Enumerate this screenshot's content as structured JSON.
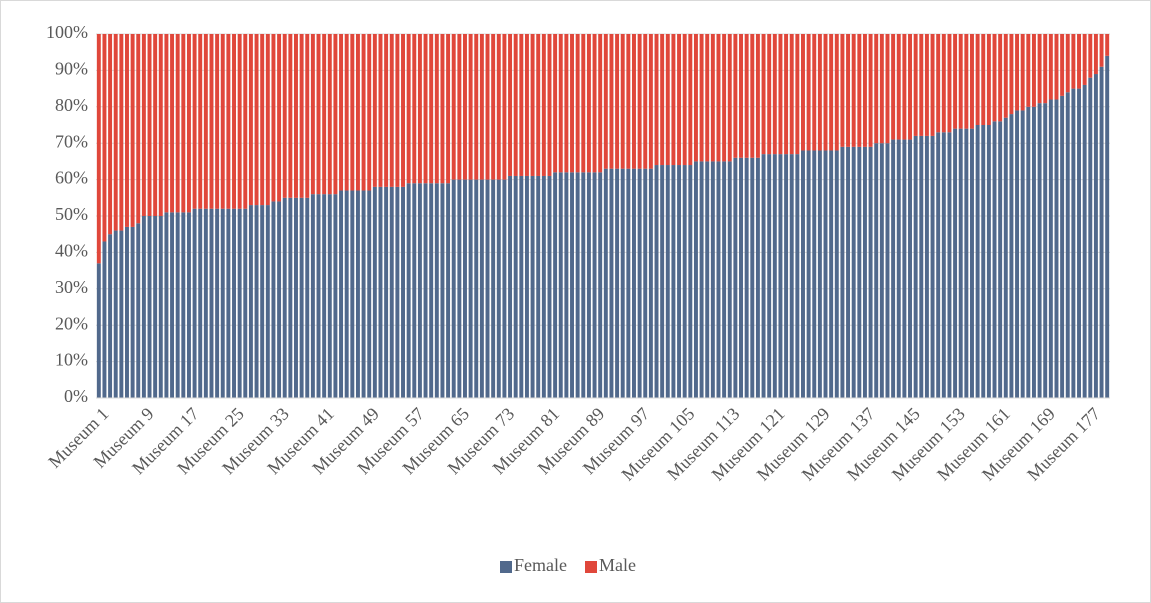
{
  "chart_data": {
    "type": "stacked_bar_100",
    "categories": [
      "Museum 1",
      null,
      null,
      null,
      null,
      null,
      null,
      null,
      "Museum 9",
      null,
      null,
      null,
      null,
      null,
      null,
      null,
      "Museum 17",
      null,
      null,
      null,
      null,
      null,
      null,
      null,
      "Museum 25",
      null,
      null,
      null,
      null,
      null,
      null,
      null,
      "Museum 33",
      null,
      null,
      null,
      null,
      null,
      null,
      null,
      "Museum 41",
      null,
      null,
      null,
      null,
      null,
      null,
      null,
      "Museum 49",
      null,
      null,
      null,
      null,
      null,
      null,
      null,
      "Museum 57",
      null,
      null,
      null,
      null,
      null,
      null,
      null,
      "Museum 65",
      null,
      null,
      null,
      null,
      null,
      null,
      null,
      "Museum 73",
      null,
      null,
      null,
      null,
      null,
      null,
      null,
      "Museum 81",
      null,
      null,
      null,
      null,
      null,
      null,
      null,
      "Museum 89",
      null,
      null,
      null,
      null,
      null,
      null,
      null,
      "Museum 97",
      null,
      null,
      null,
      null,
      null,
      null,
      null,
      "Museum 105",
      null,
      null,
      null,
      null,
      null,
      null,
      null,
      "Museum 113",
      null,
      null,
      null,
      null,
      null,
      null,
      null,
      "Museum 121",
      null,
      null,
      null,
      null,
      null,
      null,
      null,
      "Museum 129",
      null,
      null,
      null,
      null,
      null,
      null,
      null,
      "Museum 137",
      null,
      null,
      null,
      null,
      null,
      null,
      null,
      "Museum 145",
      null,
      null,
      null,
      null,
      null,
      null,
      null,
      "Museum 153",
      null,
      null,
      null,
      null,
      null,
      null,
      null,
      "Museum 161",
      null,
      null,
      null,
      null,
      null,
      null,
      null,
      "Museum 169",
      null,
      null,
      null,
      null,
      null,
      null,
      null,
      "Museum 177",
      null,
      null,
      null
    ],
    "series": [
      {
        "name": "Female",
        "color": "#51698c",
        "values": [
          37,
          43,
          45,
          46,
          46,
          47,
          47,
          48,
          50,
          50,
          50,
          50,
          51,
          51,
          51,
          51,
          51,
          52,
          52,
          52,
          52,
          52,
          52,
          52,
          52,
          52,
          52,
          53,
          53,
          53,
          53,
          54,
          54,
          55,
          55,
          55,
          55,
          55,
          56,
          56,
          56,
          56,
          56,
          57,
          57,
          57,
          57,
          57,
          57,
          58,
          58,
          58,
          58,
          58,
          58,
          59,
          59,
          59,
          59,
          59,
          59,
          59,
          59,
          60,
          60,
          60,
          60,
          60,
          60,
          60,
          60,
          60,
          60,
          61,
          61,
          61,
          61,
          61,
          61,
          61,
          61,
          62,
          62,
          62,
          62,
          62,
          62,
          62,
          62,
          62,
          63,
          63,
          63,
          63,
          63,
          63,
          63,
          63,
          63,
          64,
          64,
          64,
          64,
          64,
          64,
          64,
          65,
          65,
          65,
          65,
          65,
          65,
          65,
          66,
          66,
          66,
          66,
          66,
          67,
          67,
          67,
          67,
          67,
          67,
          67,
          68,
          68,
          68,
          68,
          68,
          68,
          68,
          69,
          69,
          69,
          69,
          69,
          69,
          70,
          70,
          70,
          71,
          71,
          71,
          71,
          72,
          72,
          72,
          72,
          73,
          73,
          73,
          74,
          74,
          74,
          74,
          75,
          75,
          75,
          76,
          76,
          77,
          78,
          79,
          79,
          80,
          80,
          81,
          81,
          82,
          82,
          83,
          84,
          85,
          85,
          86,
          88,
          89,
          91,
          94
        ]
      },
      {
        "name": "Male",
        "color": "#e0473b",
        "values": [
          63,
          57,
          55,
          54,
          54,
          53,
          53,
          52,
          50,
          50,
          50,
          50,
          49,
          49,
          49,
          49,
          49,
          48,
          48,
          48,
          48,
          48,
          48,
          48,
          48,
          48,
          48,
          47,
          47,
          47,
          47,
          46,
          46,
          45,
          45,
          45,
          45,
          45,
          44,
          44,
          44,
          44,
          44,
          43,
          43,
          43,
          43,
          43,
          43,
          42,
          42,
          42,
          42,
          42,
          42,
          41,
          41,
          41,
          41,
          41,
          41,
          41,
          41,
          40,
          40,
          40,
          40,
          40,
          40,
          40,
          40,
          40,
          40,
          39,
          39,
          39,
          39,
          39,
          39,
          39,
          39,
          38,
          38,
          38,
          38,
          38,
          38,
          38,
          38,
          38,
          37,
          37,
          37,
          37,
          37,
          37,
          37,
          37,
          37,
          36,
          36,
          36,
          36,
          36,
          36,
          36,
          35,
          35,
          35,
          35,
          35,
          35,
          35,
          34,
          34,
          34,
          34,
          34,
          33,
          33,
          33,
          33,
          33,
          33,
          33,
          32,
          32,
          32,
          32,
          32,
          32,
          32,
          31,
          31,
          31,
          31,
          31,
          31,
          30,
          30,
          30,
          29,
          29,
          29,
          29,
          28,
          28,
          28,
          28,
          27,
          27,
          27,
          26,
          26,
          26,
          26,
          25,
          25,
          25,
          24,
          24,
          23,
          22,
          21,
          21,
          20,
          20,
          19,
          19,
          18,
          18,
          17,
          16,
          15,
          15,
          14,
          12,
          11,
          9,
          6
        ]
      }
    ],
    "ylim": [
      0,
      100
    ],
    "yticks": [
      {
        "value": 0,
        "label": "0%"
      },
      {
        "value": 10,
        "label": "10%"
      },
      {
        "value": 20,
        "label": "20%"
      },
      {
        "value": 30,
        "label": "30%"
      },
      {
        "value": 40,
        "label": "40%"
      },
      {
        "value": 50,
        "label": "50%"
      },
      {
        "value": 60,
        "label": "60%"
      },
      {
        "value": 70,
        "label": "70%"
      },
      {
        "value": 80,
        "label": "80%"
      },
      {
        "value": 90,
        "label": "90%"
      },
      {
        "value": 100,
        "label": "100%"
      }
    ],
    "grid": true,
    "legend": "bottom"
  }
}
